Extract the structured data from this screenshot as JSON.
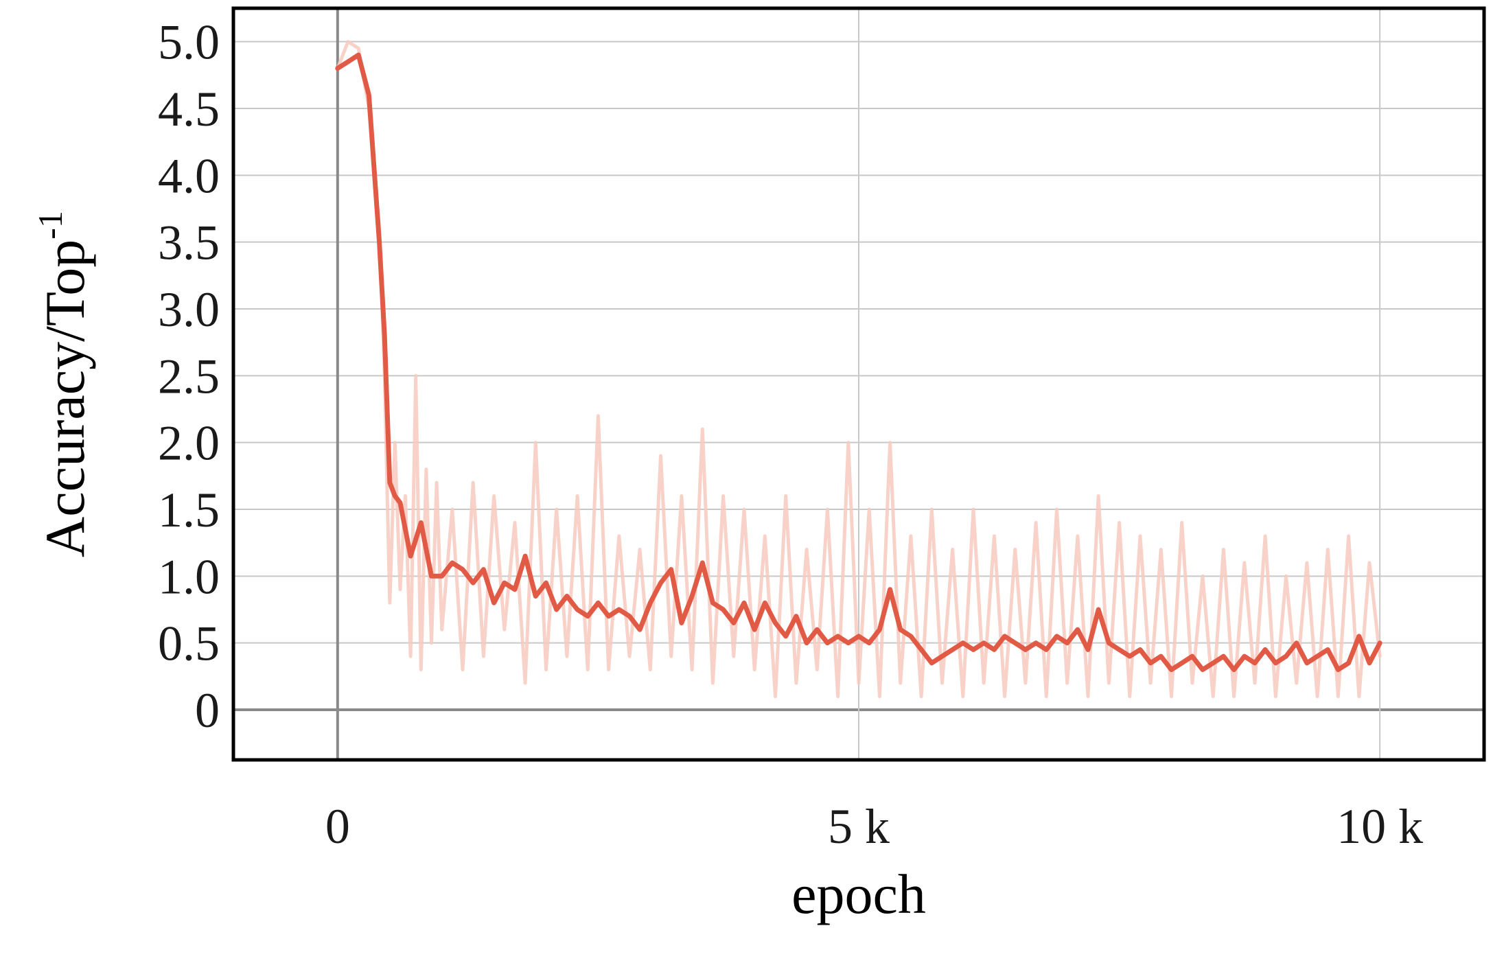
{
  "chart_data": {
    "type": "line",
    "title": "",
    "xlabel": "epoch",
    "ylabel": "Accuracy/Top",
    "ylabel_superscript": "-1",
    "xlim": [
      -1000,
      11000
    ],
    "ylim": [
      -0.375,
      5.25
    ],
    "x_ticks": [
      {
        "value": 0,
        "label": "0"
      },
      {
        "value": 5000,
        "label": "5 k"
      },
      {
        "value": 10000,
        "label": "10 k"
      }
    ],
    "y_ticks": [
      {
        "value": 0,
        "label": "0"
      },
      {
        "value": 0.5,
        "label": "0.5"
      },
      {
        "value": 1.0,
        "label": "1.0"
      },
      {
        "value": 1.5,
        "label": "1.5"
      },
      {
        "value": 2.0,
        "label": "2.0"
      },
      {
        "value": 2.5,
        "label": "2.5"
      },
      {
        "value": 3.0,
        "label": "3.0"
      },
      {
        "value": 3.5,
        "label": "3.5"
      },
      {
        "value": 4.0,
        "label": "4.0"
      },
      {
        "value": 4.5,
        "label": "4.5"
      },
      {
        "value": 5.0,
        "label": "5.0"
      }
    ],
    "grid": true,
    "legend": "none",
    "colors": {
      "smoothed": "#e05a45",
      "raw": "#f7cabf",
      "grid": "#c8c8c8",
      "zero_line": "#8a8a8a",
      "frame": "#000000"
    },
    "series": [
      {
        "role": "smoothed",
        "x": [
          0,
          100,
          200,
          300,
          400,
          450,
          500,
          550,
          600,
          700,
          800,
          900,
          1000,
          1100,
          1200,
          1300,
          1400,
          1500,
          1600,
          1700,
          1800,
          1900,
          2000,
          2100,
          2200,
          2300,
          2400,
          2500,
          2600,
          2700,
          2800,
          2900,
          3000,
          3100,
          3200,
          3300,
          3400,
          3500,
          3600,
          3700,
          3800,
          3900,
          4000,
          4100,
          4200,
          4300,
          4400,
          4500,
          4600,
          4700,
          4800,
          4900,
          5000,
          5100,
          5200,
          5300,
          5400,
          5500,
          5600,
          5700,
          5800,
          5900,
          6000,
          6100,
          6200,
          6300,
          6400,
          6500,
          6600,
          6700,
          6800,
          6900,
          7000,
          7100,
          7200,
          7300,
          7400,
          7500,
          7600,
          7700,
          7800,
          7900,
          8000,
          8100,
          8200,
          8300,
          8400,
          8500,
          8600,
          8700,
          8800,
          8900,
          9000,
          9100,
          9200,
          9300,
          9400,
          9500,
          9600,
          9700,
          9800,
          9900,
          10000
        ],
        "y": [
          4.8,
          4.85,
          4.9,
          4.6,
          3.5,
          2.8,
          1.7,
          1.6,
          1.55,
          1.15,
          1.4,
          1.0,
          1.0,
          1.1,
          1.05,
          0.95,
          1.05,
          0.8,
          0.95,
          0.9,
          1.15,
          0.85,
          0.95,
          0.75,
          0.85,
          0.75,
          0.7,
          0.8,
          0.7,
          0.75,
          0.7,
          0.6,
          0.8,
          0.95,
          1.05,
          0.65,
          0.85,
          1.1,
          0.8,
          0.75,
          0.65,
          0.8,
          0.6,
          0.8,
          0.65,
          0.55,
          0.7,
          0.5,
          0.6,
          0.5,
          0.55,
          0.5,
          0.55,
          0.5,
          0.6,
          0.9,
          0.6,
          0.55,
          0.45,
          0.35,
          0.4,
          0.45,
          0.5,
          0.45,
          0.5,
          0.45,
          0.55,
          0.5,
          0.45,
          0.5,
          0.45,
          0.55,
          0.5,
          0.6,
          0.45,
          0.75,
          0.5,
          0.45,
          0.4,
          0.45,
          0.35,
          0.4,
          0.3,
          0.35,
          0.4,
          0.3,
          0.35,
          0.4,
          0.3,
          0.4,
          0.35,
          0.45,
          0.35,
          0.4,
          0.5,
          0.35,
          0.4,
          0.45,
          0.3,
          0.35,
          0.55,
          0.35,
          0.5
        ]
      },
      {
        "role": "raw",
        "x": [
          0,
          100,
          200,
          300,
          400,
          450,
          500,
          550,
          600,
          650,
          700,
          750,
          800,
          850,
          900,
          950,
          1000,
          1100,
          1200,
          1300,
          1400,
          1500,
          1600,
          1700,
          1800,
          1900,
          2000,
          2100,
          2200,
          2300,
          2400,
          2500,
          2600,
          2700,
          2800,
          2900,
          3000,
          3100,
          3200,
          3300,
          3400,
          3500,
          3600,
          3700,
          3800,
          3900,
          4000,
          4100,
          4200,
          4300,
          4400,
          4500,
          4600,
          4700,
          4800,
          4900,
          5000,
          5100,
          5200,
          5300,
          5400,
          5500,
          5600,
          5700,
          5800,
          5900,
          6000,
          6100,
          6200,
          6300,
          6400,
          6500,
          6600,
          6700,
          6800,
          6900,
          7000,
          7100,
          7200,
          7300,
          7400,
          7500,
          7600,
          7700,
          7800,
          7900,
          8000,
          8100,
          8200,
          8300,
          8400,
          8500,
          8600,
          8700,
          8800,
          8900,
          9000,
          9100,
          9200,
          9300,
          9400,
          9500,
          9600,
          9700,
          9800,
          9900,
          10000
        ],
        "y": [
          4.8,
          5.0,
          4.95,
          4.5,
          3.6,
          2.5,
          0.8,
          2.0,
          0.9,
          1.6,
          0.4,
          2.5,
          0.3,
          1.8,
          0.5,
          1.7,
          0.6,
          1.5,
          0.3,
          1.7,
          0.4,
          1.6,
          0.6,
          1.4,
          0.2,
          2.0,
          0.3,
          1.5,
          0.4,
          1.6,
          0.3,
          2.2,
          0.3,
          1.3,
          0.4,
          1.2,
          0.3,
          1.9,
          0.4,
          1.6,
          0.3,
          2.1,
          0.2,
          1.6,
          0.4,
          1.5,
          0.3,
          1.3,
          0.1,
          1.6,
          0.2,
          1.2,
          0.3,
          1.5,
          0.1,
          2.0,
          0.2,
          1.5,
          0.1,
          2.0,
          0.2,
          1.3,
          0.1,
          1.5,
          0.2,
          1.2,
          0.1,
          1.5,
          0.2,
          1.3,
          0.1,
          1.2,
          0.2,
          1.4,
          0.1,
          1.5,
          0.2,
          1.3,
          0.1,
          1.6,
          0.2,
          1.4,
          0.1,
          1.3,
          0.2,
          1.2,
          0.1,
          1.4,
          0.2,
          1.0,
          0.1,
          1.2,
          0.1,
          1.1,
          0.2,
          1.3,
          0.1,
          1.0,
          0.2,
          1.1,
          0.1,
          1.2,
          0.1,
          1.3,
          0.1,
          1.1,
          0.4
        ]
      }
    ]
  }
}
